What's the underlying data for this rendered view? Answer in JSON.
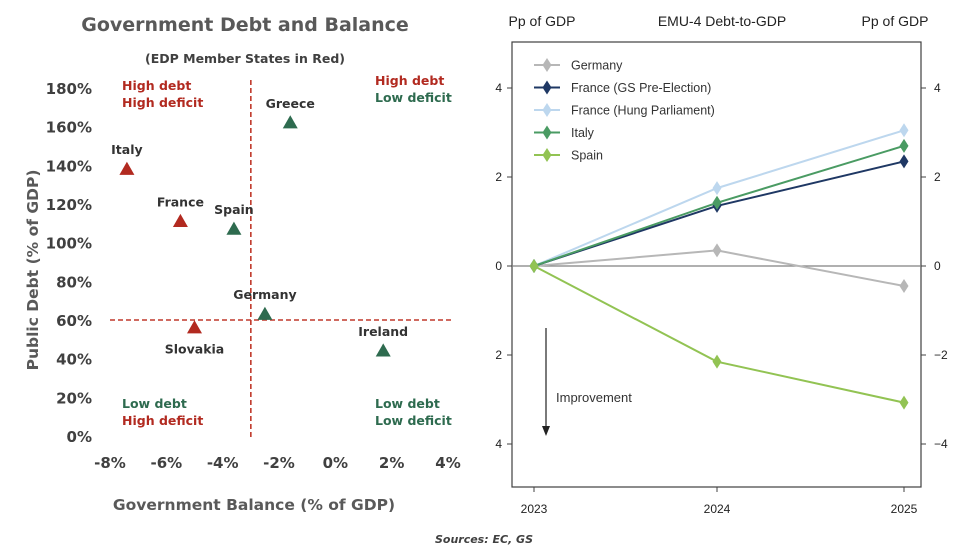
{
  "left_chart": {
    "title": "Government Debt and Balance",
    "subtitle": "(EDP Member States in Red)",
    "xlabel": "Government Balance (% of GDP)",
    "ylabel": "Public Debt (% of GDP)",
    "colors": {
      "red": "#b22a20",
      "green": "#2e6b4f",
      "axis_text": "#404040",
      "divider": "#c0392b"
    },
    "quadrant_labels": [
      {
        "id": "tl",
        "line1": "High debt",
        "line2": "High deficit",
        "color1": "#b22a20",
        "color2": "#b22a20"
      },
      {
        "id": "tr",
        "line1": "High debt",
        "line2": "Low deficit",
        "color1": "#b22a20",
        "color2": "#2e6b4f"
      },
      {
        "id": "bl",
        "line1": "Low debt",
        "line2": "High deficit",
        "color1": "#2e6b4f",
        "color2": "#b22a20"
      },
      {
        "id": "br",
        "line1": "Low debt",
        "line2": "Low deficit",
        "color1": "#2e6b4f",
        "color2": "#2e6b4f"
      }
    ]
  },
  "right_chart": {
    "title": "EMU-4 Debt-to-GDP",
    "left_unit": "Pp of GDP",
    "right_unit": "Pp of GDP",
    "annotation": "Improvement",
    "zero_line_color": "#808080"
  },
  "sources": "Sources: EC, GS",
  "chart_data": [
    {
      "type": "scatter",
      "title": "Government Debt and Balance",
      "subtitle": "(EDP Member States in Red)",
      "xlabel": "Government Balance (% of GDP)",
      "ylabel": "Public Debt (% of GDP)",
      "xlim": [
        -8,
        4
      ],
      "ylim": [
        0,
        180
      ],
      "x_ticks": [
        -8,
        -6,
        -4,
        -2,
        0,
        2,
        4
      ],
      "x_tick_labels": [
        "-8%",
        "-6%",
        "-4%",
        "-2%",
        "0%",
        "2%",
        "4%"
      ],
      "y_ticks": [
        0,
        20,
        40,
        60,
        80,
        100,
        120,
        140,
        160,
        180
      ],
      "y_tick_labels": [
        "0%",
        "20%",
        "40%",
        "60%",
        "80%",
        "100%",
        "120%",
        "140%",
        "160%",
        "180%"
      ],
      "thresholds": {
        "x": -3,
        "y": 60
      },
      "grid": false,
      "points": [
        {
          "label": "Greece",
          "x": -1.6,
          "y": 162,
          "color": "#2e6b4f",
          "label_pos": "above"
        },
        {
          "label": "Italy",
          "x": -7.4,
          "y": 138,
          "color": "#b22a20",
          "label_pos": "above"
        },
        {
          "label": "France",
          "x": -5.5,
          "y": 111,
          "color": "#b22a20",
          "label_pos": "above"
        },
        {
          "label": "Spain",
          "x": -3.6,
          "y": 107,
          "color": "#2e6b4f",
          "label_pos": "above"
        },
        {
          "label": "Germany",
          "x": -2.5,
          "y": 63,
          "color": "#2e6b4f",
          "label_pos": "above"
        },
        {
          "label": "Slovakia",
          "x": -5.0,
          "y": 56,
          "color": "#b22a20",
          "label_pos": "below"
        },
        {
          "label": "Ireland",
          "x": 1.7,
          "y": 44,
          "color": "#2e6b4f",
          "label_pos": "above"
        }
      ]
    },
    {
      "type": "line",
      "title": "EMU-4 Debt-to-GDP",
      "ylabel_left": "Pp of GDP",
      "ylabel_right": "Pp of GDP",
      "x": [
        "2023",
        "2024",
        "2025"
      ],
      "ylim": [
        -4.8,
        4.8
      ],
      "y_ticks": [
        4,
        2,
        0,
        -2,
        -4
      ],
      "left_tick_labels": [
        "4",
        "2",
        "0",
        "2",
        "4"
      ],
      "right_tick_labels": [
        "4",
        "2",
        "0",
        "−2",
        "−4"
      ],
      "legend_position": "top-left",
      "grid": false,
      "annotation": "Improvement",
      "series": [
        {
          "name": "Germany",
          "values": [
            0,
            0.35,
            -0.45
          ],
          "color": "#b7b7b7"
        },
        {
          "name": "France (GS Pre-Election)",
          "values": [
            0,
            1.35,
            2.35
          ],
          "color": "#1f3864"
        },
        {
          "name": "France (Hung Parliament)",
          "values": [
            0,
            1.75,
            3.05
          ],
          "color": "#bdd7ee"
        },
        {
          "name": "Italy",
          "values": [
            0,
            1.42,
            2.7
          ],
          "color": "#4a9b63"
        },
        {
          "name": "Spain",
          "values": [
            0,
            -2.15,
            -3.07
          ],
          "color": "#92c353"
        }
      ]
    }
  ]
}
